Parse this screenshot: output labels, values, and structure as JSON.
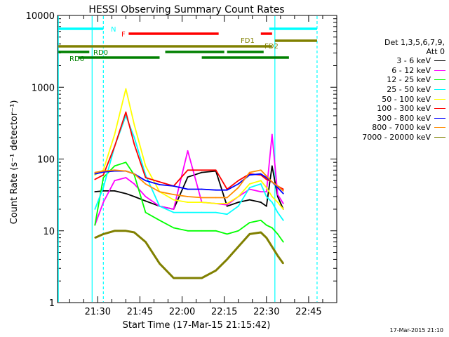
{
  "chart_data": {
    "type": "line",
    "title": "HESSI Observing Summary Count Rates",
    "xlabel": "Start Time (17-Mar-15 21:15:42)",
    "ylabel": "Count Rate (s⁻¹ detector⁻¹)",
    "yscale": "log",
    "ylim": [
      1,
      10000
    ],
    "xlim": [
      "21:15:42",
      "22:55:00"
    ],
    "x_ticks": [
      "21:30",
      "21:45",
      "22:00",
      "22:15",
      "22:30",
      "22:45"
    ],
    "y_ticks": [
      "1",
      "10",
      "100",
      "1000",
      "10000"
    ],
    "legend_title": [
      "Det 1,3,5,6,7,9,",
      "Att 0"
    ],
    "legend_position": "right",
    "x": [
      "21:29",
      "21:32",
      "21:36",
      "21:40",
      "21:43",
      "21:47",
      "21:52",
      "21:57",
      "22:02",
      "22:07",
      "22:12",
      "22:16",
      "22:20",
      "22:24",
      "22:28",
      "22:30",
      "22:32",
      "22:34",
      "22:36"
    ],
    "series": [
      {
        "name": "3 - 6 keV",
        "color": "#000000",
        "values": [
          35,
          36,
          36,
          33,
          30,
          26,
          22,
          20,
          56,
          65,
          68,
          22,
          25,
          27,
          25,
          22,
          80,
          30,
          20
        ]
      },
      {
        "name": "6 - 12 keV",
        "color": "#ff00ff",
        "values": [
          12,
          25,
          50,
          55,
          45,
          30,
          22,
          20,
          130,
          25,
          24,
          23,
          30,
          38,
          35,
          35,
          220,
          32,
          24
        ]
      },
      {
        "name": "12 - 25 keV",
        "color": "#00ff00",
        "values": [
          12,
          55,
          80,
          90,
          60,
          18,
          14,
          11,
          10,
          10,
          10,
          9,
          10,
          13,
          14,
          12,
          11,
          9,
          7
        ]
      },
      {
        "name": "25 - 50 keV",
        "color": "#00ffff",
        "values": [
          20,
          40,
          150,
          400,
          200,
          60,
          22,
          18,
          18,
          18,
          18,
          17,
          22,
          40,
          45,
          30,
          25,
          18,
          14
        ]
      },
      {
        "name": "50 - 100 keV",
        "color": "#ffff00",
        "values": [
          60,
          70,
          220,
          950,
          300,
          80,
          35,
          27,
          25,
          25,
          24,
          24,
          30,
          45,
          50,
          40,
          30,
          25,
          20
        ]
      },
      {
        "name": "100 - 300 keV",
        "color": "#ff0000",
        "values": [
          52,
          60,
          150,
          450,
          160,
          55,
          48,
          42,
          70,
          70,
          70,
          38,
          50,
          62,
          60,
          52,
          48,
          42,
          38
        ]
      },
      {
        "name": "300 - 800 keV",
        "color": "#0000ff",
        "values": [
          62,
          66,
          68,
          68,
          62,
          50,
          44,
          42,
          38,
          38,
          37,
          37,
          45,
          60,
          62,
          55,
          48,
          40,
          33
        ]
      },
      {
        "name": "800 - 7000 keV",
        "color": "#ff8c00",
        "values": [
          65,
          68,
          70,
          68,
          62,
          45,
          35,
          32,
          30,
          29,
          29,
          29,
          40,
          65,
          70,
          58,
          48,
          42,
          36
        ]
      },
      {
        "name": "7000 - 20000 keV",
        "color": "#808000",
        "values": [
          8,
          9,
          10,
          10,
          9.5,
          7,
          3.5,
          2.2,
          2.2,
          2.2,
          2.8,
          4,
          6,
          9,
          9.5,
          8,
          6,
          4.5,
          3.5
        ]
      }
    ],
    "flag_bars": [
      {
        "label": "N",
        "color": "#00ffff",
        "segments": [
          [
            "21:16",
            "21:32"
          ],
          [
            "22:31",
            "22:48"
          ]
        ]
      },
      {
        "label": "F",
        "color": "#ff0000",
        "segments": [
          [
            "21:41",
            "22:13"
          ],
          [
            "22:28",
            "22:32"
          ]
        ]
      },
      {
        "label": "FD1",
        "color": "#808000",
        "segments": [
          [
            "21:16",
            "22:32"
          ]
        ]
      },
      {
        "label": "FD2",
        "color": "#808000",
        "segments": [
          [
            "22:33",
            "22:48"
          ]
        ]
      },
      {
        "label": "RD0",
        "color": "#008000",
        "segments": [
          [
            "21:16",
            "21:27"
          ],
          [
            "21:54",
            "22:15"
          ],
          [
            "22:16",
            "22:29"
          ]
        ]
      },
      {
        "label": "RD6",
        "color": "#008000",
        "segments": [
          [
            "21:23",
            "21:52"
          ],
          [
            "22:07",
            "22:38"
          ]
        ]
      }
    ],
    "vertical_lines": [
      {
        "color": "#00ffff",
        "style": "solid",
        "x": "21:16"
      },
      {
        "color": "#00ffff",
        "style": "solid",
        "x": "21:28"
      },
      {
        "color": "#00ffff",
        "style": "dashed",
        "x": "21:32"
      },
      {
        "color": "#00ffff",
        "style": "solid",
        "x": "22:33"
      },
      {
        "color": "#00ffff",
        "style": "dashed",
        "x": "22:48"
      }
    ]
  },
  "footer": {
    "timestamp": "17-Mar-2015 21:10"
  }
}
